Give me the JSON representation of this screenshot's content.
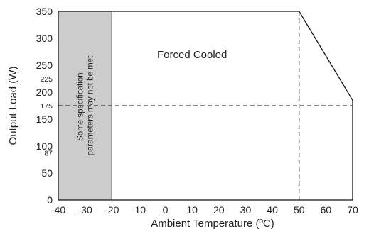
{
  "chart_data": {
    "type": "line",
    "title": "",
    "xlabel": "Ambient Temperature (ºC)",
    "ylabel": "Output Load (W)",
    "xlim": [
      -40,
      70
    ],
    "ylim": [
      0,
      350
    ],
    "x_ticks": [
      -40,
      -30,
      -20,
      -10,
      0,
      10,
      20,
      30,
      40,
      50,
      60,
      70
    ],
    "y_ticks": [
      0,
      50,
      87,
      100,
      150,
      175,
      200,
      225,
      250,
      300,
      350
    ],
    "y_tick_labels": [
      "0",
      "50",
      "87",
      "100",
      "150",
      "175",
      "200",
      "225",
      "250",
      "300",
      "350"
    ],
    "series": [
      {
        "name": "Forced Cooled",
        "points": [
          [
            -40,
            350
          ],
          [
            50,
            350
          ],
          [
            70,
            185
          ],
          [
            70,
            0
          ]
        ]
      }
    ],
    "reference_lines": [
      {
        "axis": "y",
        "value": 175,
        "style": "dashed"
      },
      {
        "axis": "x",
        "value": 50,
        "style": "dashed"
      }
    ],
    "shaded_region": {
      "x_range": [
        -40,
        -20
      ],
      "y_range": [
        0,
        350
      ],
      "color": "#cccccc",
      "label": "Some specification parameters may not be met",
      "label_lines": [
        "Some specification",
        "parameters may not be met"
      ]
    },
    "annotations": [
      {
        "text": "Forced Cooled",
        "x": 10,
        "y": 270
      }
    ],
    "grid": false
  }
}
